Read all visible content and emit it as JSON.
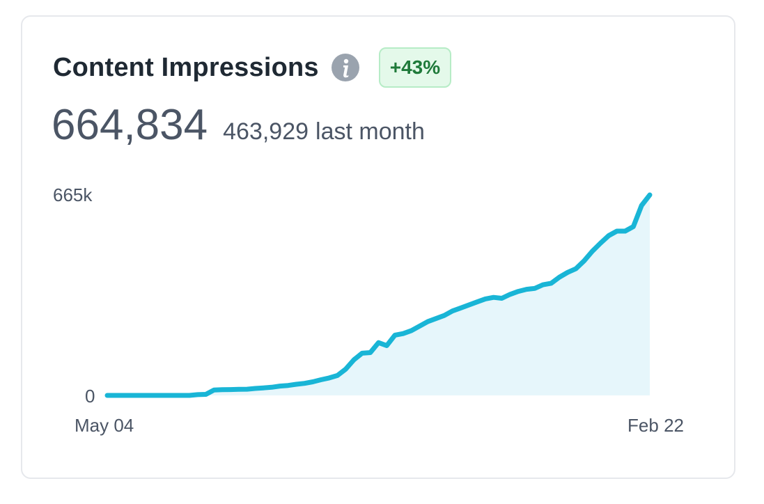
{
  "card": {
    "title": "Content Impressions",
    "info_icon": "info-icon",
    "badge": "+43%",
    "value": "664,834",
    "last_month_value": "463,929",
    "last_month_label": "last month"
  },
  "colors": {
    "line": "#19b5d6",
    "area": "#e6f6fb",
    "badge_bg": "#e4f9ea",
    "badge_text": "#1f7a3a"
  },
  "chart_data": {
    "type": "area",
    "title": "",
    "xlabel": "",
    "ylabel": "",
    "ylim": [
      0,
      665000
    ],
    "ytick_labels": [
      "665k",
      "0"
    ],
    "xtick_labels": [
      "May 04",
      "Feb 22"
    ],
    "grid": false,
    "series": [
      {
        "name": "Content Impressions",
        "values": [
          0,
          0,
          0,
          0,
          0,
          0,
          0,
          0,
          0,
          0,
          0,
          2500,
          3500,
          18000,
          19000,
          19500,
          20000,
          20500,
          23000,
          25000,
          27000,
          31000,
          33000,
          37000,
          40000,
          45000,
          52000,
          58000,
          66000,
          87000,
          118000,
          140000,
          142000,
          175000,
          165000,
          200000,
          205000,
          215000,
          230000,
          245000,
          255000,
          265000,
          280000,
          290000,
          300000,
          310000,
          320000,
          325000,
          322000,
          335000,
          345000,
          352000,
          355000,
          367000,
          372000,
          392000,
          408000,
          420000,
          446000,
          478000,
          505000,
          530000,
          545000,
          545000,
          560000,
          630000,
          665000
        ]
      }
    ]
  }
}
